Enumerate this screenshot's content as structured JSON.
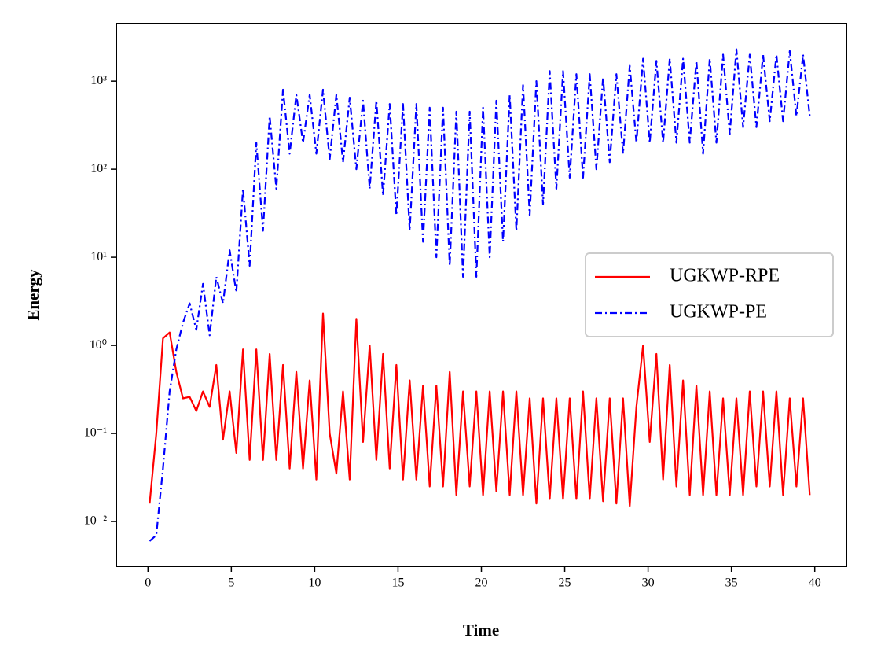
{
  "chart_data": {
    "type": "line",
    "x_label": "Time",
    "y_label": "Energy",
    "log_y": true,
    "legend": "center right",
    "xlim": [
      -1.9,
      41.9
    ],
    "xticks": [
      0,
      5,
      10,
      15,
      20,
      25,
      30,
      35,
      40
    ],
    "ylim": [
      0.0031,
      4500
    ],
    "yticks": [
      {
        "value": 0.01,
        "label": "10⁻²"
      },
      {
        "value": 0.1,
        "label": "10⁻¹"
      },
      {
        "value": 1,
        "label": "10⁰"
      },
      {
        "value": 10,
        "label": "10¹"
      },
      {
        "value": 100,
        "label": "10²"
      },
      {
        "value": 1000,
        "label": "10³"
      }
    ],
    "x": [
      0.1,
      0.5,
      0.9,
      1.3,
      1.7,
      2.1,
      2.5,
      2.9,
      3.3,
      3.7,
      4.1,
      4.5,
      4.9,
      5.3,
      5.7,
      6.1,
      6.5,
      6.9,
      7.3,
      7.7,
      8.1,
      8.5,
      8.9,
      9.3,
      9.7,
      10.1,
      10.5,
      10.9,
      11.3,
      11.7,
      12.1,
      12.5,
      12.9,
      13.3,
      13.7,
      14.1,
      14.5,
      14.9,
      15.3,
      15.7,
      16.1,
      16.5,
      16.9,
      17.3,
      17.7,
      18.1,
      18.5,
      18.9,
      19.3,
      19.7,
      20.1,
      20.5,
      20.9,
      21.3,
      21.7,
      22.1,
      22.5,
      22.9,
      23.3,
      23.7,
      24.1,
      24.5,
      24.9,
      25.3,
      25.7,
      26.1,
      26.5,
      26.9,
      27.3,
      27.7,
      28.1,
      28.5,
      28.9,
      29.3,
      29.7,
      30.1,
      30.5,
      30.9,
      31.3,
      31.7,
      32.1,
      32.5,
      32.9,
      33.3,
      33.7,
      34.1,
      34.5,
      34.9,
      35.3,
      35.7,
      36.1,
      36.5,
      36.9,
      37.3,
      37.7,
      38.1,
      38.5,
      38.9,
      39.3,
      39.7
    ],
    "series": [
      {
        "name": "UGKWP-RPE",
        "color": "#ff0000",
        "style": "solid",
        "values": [
          0.016,
          0.1,
          1.2,
          1.4,
          0.5,
          0.25,
          0.26,
          0.18,
          0.3,
          0.2,
          0.6,
          0.085,
          0.3,
          0.06,
          0.9,
          0.05,
          0.9,
          0.05,
          0.8,
          0.05,
          0.6,
          0.04,
          0.5,
          0.04,
          0.4,
          0.03,
          2.3,
          0.1,
          0.035,
          0.3,
          0.03,
          2.0,
          0.08,
          1.0,
          0.05,
          0.8,
          0.04,
          0.6,
          0.03,
          0.4,
          0.03,
          0.35,
          0.025,
          0.35,
          0.025,
          0.5,
          0.02,
          0.3,
          0.025,
          0.3,
          0.02,
          0.3,
          0.022,
          0.3,
          0.02,
          0.3,
          0.02,
          0.25,
          0.016,
          0.25,
          0.018,
          0.25,
          0.018,
          0.25,
          0.018,
          0.3,
          0.018,
          0.25,
          0.017,
          0.25,
          0.016,
          0.25,
          0.015,
          0.2,
          1.0,
          0.08,
          0.8,
          0.03,
          0.6,
          0.025,
          0.4,
          0.02,
          0.35,
          0.02,
          0.3,
          0.02,
          0.25,
          0.02,
          0.25,
          0.02,
          0.3,
          0.025,
          0.3,
          0.025,
          0.3,
          0.02,
          0.25,
          0.025,
          0.25,
          0.02
        ]
      },
      {
        "name": "UGKWP-PE",
        "color": "#0000ff",
        "style": "dashdot",
        "values": [
          0.006,
          0.007,
          0.04,
          0.3,
          0.9,
          1.8,
          3,
          1.5,
          5,
          1.3,
          6,
          3,
          12,
          4,
          60,
          8,
          200,
          20,
          400,
          60,
          800,
          150,
          700,
          200,
          700,
          150,
          800,
          130,
          700,
          120,
          650,
          100,
          600,
          60,
          600,
          50,
          550,
          30,
          550,
          20,
          550,
          15,
          500,
          10,
          500,
          8,
          450,
          6,
          450,
          6,
          500,
          10,
          600,
          15,
          700,
          20,
          900,
          30,
          1000,
          40,
          1300,
          60,
          1300,
          80,
          1200,
          80,
          1200,
          100,
          1100,
          120,
          1200,
          150,
          1500,
          200,
          1800,
          200,
          1700,
          200,
          1800,
          200,
          1800,
          200,
          1700,
          150,
          1800,
          200,
          2000,
          250,
          2300,
          300,
          2000,
          300,
          2000,
          350,
          2000,
          350,
          2200,
          400,
          2000,
          400
        ]
      }
    ]
  }
}
